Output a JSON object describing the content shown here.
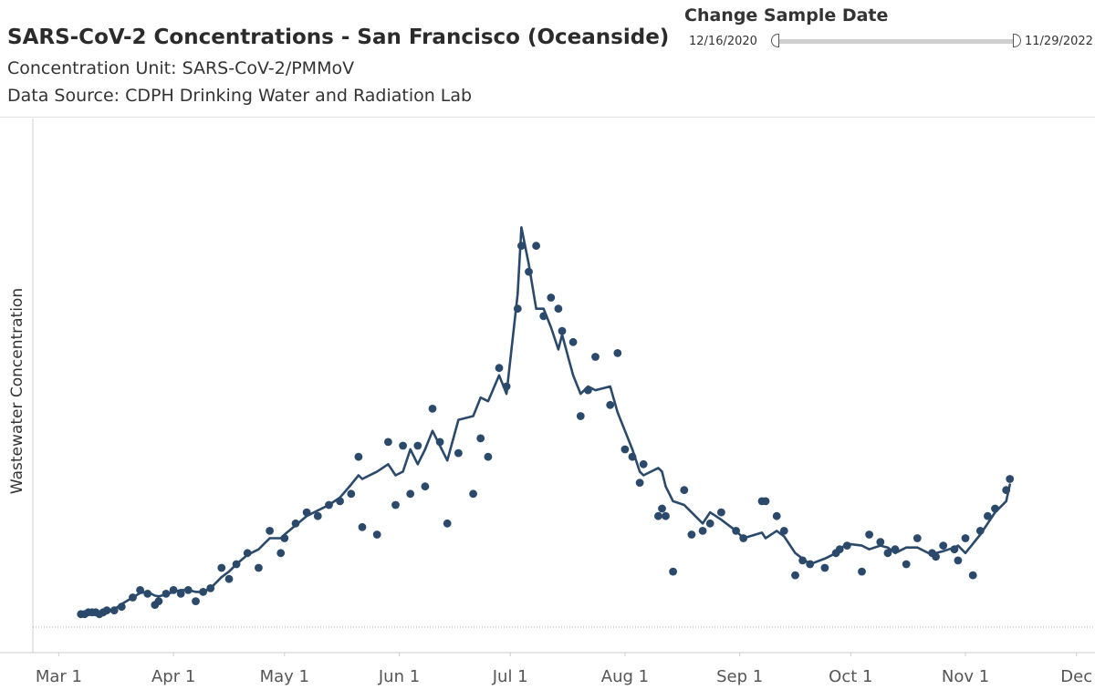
{
  "header": {
    "title": "SARS-CoV-2 Concentrations - San Francisco (Oceanside)",
    "subtitle_unit": "Concentration Unit:  SARS-CoV-2/PMMoV",
    "subtitle_source": "Data Source: CDPH Drinking Water and Radiation Lab"
  },
  "date_filter": {
    "label": "Change Sample Date",
    "start_date": "12/16/2020",
    "end_date": "11/29/2022"
  },
  "colors": {
    "series": "#2b4a6b",
    "axis": "#cccccc",
    "tick_text": "#555555"
  },
  "chart_data": {
    "type": "scatter",
    "ylabel": "Wastewater Concentration",
    "xlabel": "",
    "x_tick_labels": [
      "Mar 1",
      "Apr 1",
      "May 1",
      "Jun 1",
      "Jul 1",
      "Aug 1",
      "Sep 1",
      "Oct 1",
      "Nov 1",
      "Dec"
    ],
    "x_tick_days": [
      0,
      31,
      61,
      92,
      122,
      153,
      184,
      214,
      245,
      275
    ],
    "x_range_days": [
      -7,
      280
    ],
    "y_range": [
      0,
      130
    ],
    "grid": false,
    "series": [
      {
        "kind": "points",
        "x": [
          6,
          7,
          8,
          9,
          10,
          11,
          12,
          13,
          15,
          17,
          20,
          22,
          24,
          26,
          27,
          29,
          31,
          33,
          35,
          37,
          39,
          41,
          44,
          46,
          48,
          51,
          54,
          57,
          60,
          61,
          64,
          67,
          70,
          73,
          76,
          79,
          81,
          82,
          86,
          89,
          91,
          93,
          95,
          97,
          99,
          101,
          103,
          105,
          108,
          112,
          114,
          116,
          119,
          121,
          124,
          125,
          127,
          129,
          131,
          133,
          135,
          136,
          139,
          141,
          143,
          145,
          149,
          151,
          153,
          155,
          157,
          158,
          162,
          163,
          164,
          166,
          169,
          171,
          174,
          176,
          179,
          183,
          185,
          190,
          191,
          194,
          196,
          199,
          201,
          203,
          207,
          210,
          211,
          213,
          217,
          219,
          222,
          224,
          226,
          229,
          232,
          236,
          237,
          239,
          242,
          243,
          245,
          247,
          249,
          251,
          253,
          256,
          257
        ],
        "y": [
          3.5,
          3.5,
          4,
          4,
          4,
          3.5,
          4,
          4.5,
          4.5,
          5.5,
          8,
          10,
          9,
          6,
          7,
          9,
          10,
          9,
          10,
          7,
          9.5,
          10.5,
          16,
          13,
          17,
          20,
          16,
          26,
          20,
          24,
          28,
          31,
          30,
          33,
          34,
          36,
          46,
          27,
          25,
          50,
          33,
          49,
          36,
          49,
          38,
          59,
          50,
          28,
          47,
          36,
          51,
          46,
          70,
          65,
          86,
          103,
          96,
          103,
          84,
          89,
          86,
          80,
          77,
          57,
          64,
          73,
          60,
          74,
          48,
          46,
          39,
          44,
          30,
          32,
          30,
          15,
          37,
          25,
          26,
          28,
          31,
          26,
          24,
          34,
          34,
          30,
          26,
          14,
          18,
          17,
          16,
          20,
          21,
          22,
          15,
          25,
          23,
          20,
          21,
          17,
          24,
          20,
          19,
          22,
          21,
          18,
          24,
          14,
          26,
          30,
          32,
          37,
          40
        ]
      },
      {
        "kind": "moving_average",
        "x": [
          6,
          7,
          8,
          9,
          10,
          11,
          12,
          13,
          15,
          17,
          20,
          22,
          24,
          26,
          27,
          29,
          31,
          33,
          35,
          37,
          39,
          41,
          44,
          46,
          48,
          51,
          54,
          57,
          60,
          61,
          64,
          67,
          70,
          73,
          76,
          79,
          81,
          82,
          86,
          89,
          91,
          93,
          95,
          97,
          99,
          101,
          103,
          105,
          108,
          112,
          114,
          116,
          119,
          121,
          124,
          125,
          127,
          129,
          131,
          133,
          135,
          136,
          139,
          141,
          143,
          145,
          149,
          151,
          153,
          155,
          157,
          158,
          162,
          163,
          164,
          166,
          169,
          171,
          174,
          176,
          179,
          183,
          185,
          190,
          191,
          194,
          196,
          199,
          201,
          203,
          207,
          210,
          211,
          213,
          217,
          219,
          222,
          224,
          226,
          229,
          232,
          236,
          237,
          239,
          242,
          243,
          245,
          247,
          249,
          251,
          253,
          256,
          257
        ],
        "y": [
          3.5,
          3.7,
          3.9,
          4,
          4,
          3.8,
          3.9,
          4.2,
          4.8,
          6.2,
          8,
          9.2,
          9.5,
          8.5,
          8.3,
          8.8,
          9.5,
          10,
          10,
          9.5,
          9.5,
          10.5,
          13.5,
          15,
          17,
          19.5,
          21,
          24,
          24,
          25,
          27.5,
          30,
          31.5,
          33,
          35,
          38.5,
          41,
          40,
          42,
          44,
          41,
          42,
          48,
          44,
          48,
          53,
          49,
          45,
          56,
          57,
          62,
          61,
          68,
          63,
          90,
          108,
          98,
          86,
          86,
          81,
          75,
          79,
          68,
          63,
          65,
          64,
          65,
          58,
          53,
          48,
          42,
          41,
          43,
          42,
          38,
          34,
          33,
          31,
          28,
          31,
          29,
          26,
          24,
          25.5,
          24,
          26,
          24.5,
          20,
          18.5,
          17,
          18.5,
          20,
          21,
          22.5,
          22,
          21,
          22,
          21.5,
          20,
          21.5,
          21.5,
          19.5,
          20,
          20.5,
          21.5,
          22,
          20,
          22.5,
          25,
          28,
          31,
          34,
          38.5
        ]
      }
    ],
    "annotations": [
      {
        "type": "reference_line",
        "y": 0,
        "style": "dotted"
      }
    ]
  }
}
